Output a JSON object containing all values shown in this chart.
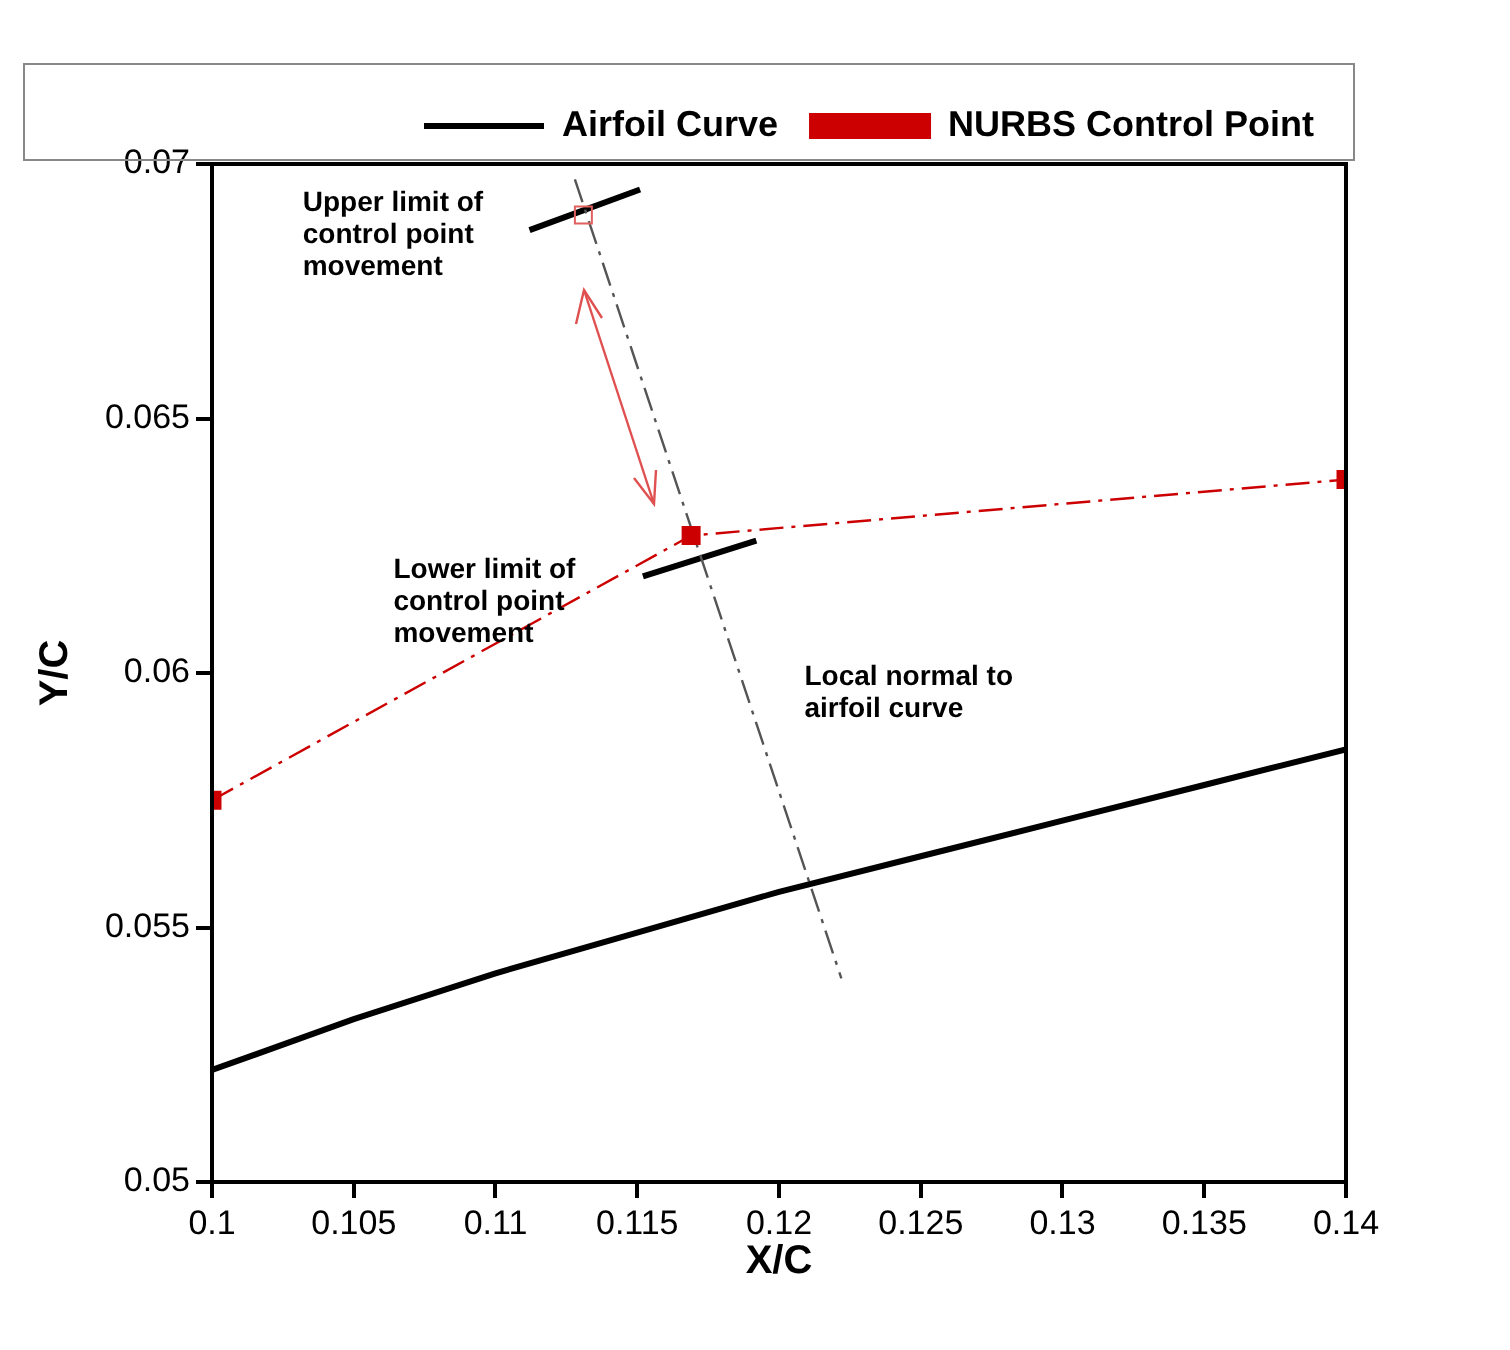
{
  "chart_data": {
    "type": "line",
    "xlabel": "X/C",
    "ylabel": "Y/C",
    "xlim": [
      0.1,
      0.14
    ],
    "xticks": [
      0.1,
      0.105,
      0.11,
      0.115,
      0.12,
      0.125,
      0.13,
      0.135,
      0.14
    ],
    "ylim": [
      0.05,
      0.07
    ],
    "yticks": [
      0.05,
      0.055,
      0.06,
      0.065,
      0.07
    ],
    "grid": false,
    "legend": "top right",
    "series": [
      {
        "name": "Airfoil Curve",
        "type": "line",
        "color": "#000000",
        "line_style": "solid",
        "marker": "none",
        "x": [
          0.1,
          0.105,
          0.11,
          0.115,
          0.12,
          0.125,
          0.13,
          0.135,
          0.14
        ],
        "values": [
          0.0522,
          0.0532,
          0.0541,
          0.0549,
          0.0557,
          0.0564,
          0.0571,
          0.0578,
          0.0585
        ]
      },
      {
        "name": "NURBS Control Point",
        "type": "line",
        "color": "#cc0000",
        "line_style": "dashed",
        "marker": "square",
        "x": [
          0.1,
          0.1169,
          0.14
        ],
        "values": [
          0.0575,
          0.0627,
          0.0638
        ]
      },
      {
        "type": "scatter",
        "color": "#e06060",
        "marker": "square",
        "x": [
          0.1131
        ],
        "values": [
          0.069
        ]
      },
      {
        "type": "line",
        "color": "#555555",
        "line_style": "dashed",
        "marker": "none",
        "x": [
          0.1128,
          0.1222
        ],
        "values": [
          0.0697,
          0.054
        ]
      },
      {
        "type": "line",
        "color": "#000000",
        "line_style": "solid",
        "marker": "none",
        "x": [
          0.1112,
          0.1151
        ],
        "values": [
          0.0687,
          0.0695
        ]
      },
      {
        "type": "line",
        "color": "#000000",
        "line_style": "solid",
        "marker": "none",
        "x": [
          0.1152,
          0.1192
        ],
        "values": [
          0.0619,
          0.0626
        ]
      }
    ],
    "annotations": [
      "Upper limit of\ncontrol point\nmovement",
      "Lower limit of\ncontrol point\nmovement",
      "Local normal to\nairfoil curve"
    ]
  }
}
